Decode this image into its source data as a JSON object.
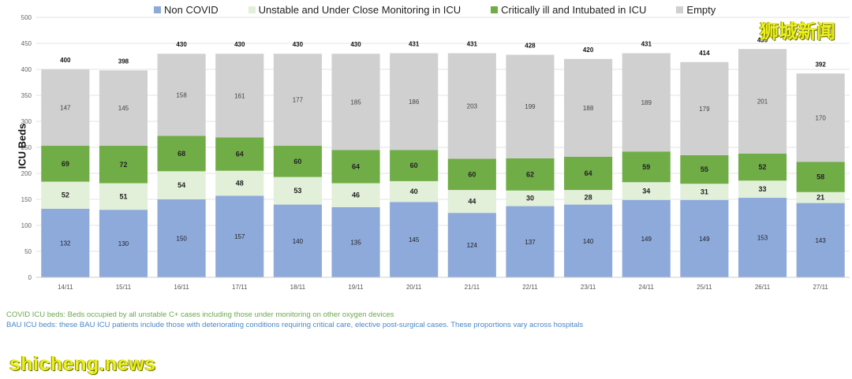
{
  "watermarks": {
    "left": "shicheng.news",
    "right": "狮城新闻"
  },
  "notes": [
    "COVID ICU beds: Beds occupied by all unstable C+ cases including those under monitoring on other oxygen devices",
    "BAU ICU beds: these BAU ICU patients include those with deteriorating conditions requiring critical care, elective post-surgical cases. These proportions vary across hospitals"
  ],
  "chart_data": {
    "type": "bar",
    "stacked": true,
    "title": "",
    "ylabel": "ICU Beds",
    "xlabel": "",
    "ylim": [
      0,
      500
    ],
    "yticks": [
      0,
      50,
      100,
      150,
      200,
      250,
      300,
      350,
      400,
      450,
      500
    ],
    "grid": true,
    "legend_position": "top",
    "categories": [
      "14/11",
      "15/11",
      "16/11",
      "17/11",
      "18/11",
      "19/11",
      "20/11",
      "21/11",
      "22/11",
      "23/11",
      "24/11",
      "25/11",
      "26/11",
      "27/11"
    ],
    "series": [
      {
        "name": "Non COVID",
        "color": "#8eaadb",
        "values": [
          132,
          130,
          150,
          157,
          140,
          135,
          145,
          124,
          137,
          140,
          149,
          149,
          153,
          143
        ]
      },
      {
        "name": "Unstable and Under Close Monitoring in ICU",
        "color": "#e2efd9",
        "values": [
          52,
          51,
          54,
          48,
          53,
          46,
          40,
          44,
          30,
          28,
          34,
          31,
          33,
          21
        ]
      },
      {
        "name": "Critically ill and Intubated in ICU",
        "color": "#70ad47",
        "values": [
          69,
          72,
          68,
          64,
          60,
          64,
          60,
          60,
          62,
          64,
          59,
          55,
          52,
          58
        ]
      },
      {
        "name": "Empty",
        "color": "#d0d0d0",
        "values": [
          147,
          145,
          158,
          161,
          177,
          185,
          186,
          203,
          199,
          188,
          189,
          179,
          201,
          170
        ]
      }
    ],
    "totals": [
      400,
      398,
      430,
      430,
      430,
      430,
      431,
      431,
      428,
      420,
      431,
      414,
      439,
      392
    ]
  }
}
